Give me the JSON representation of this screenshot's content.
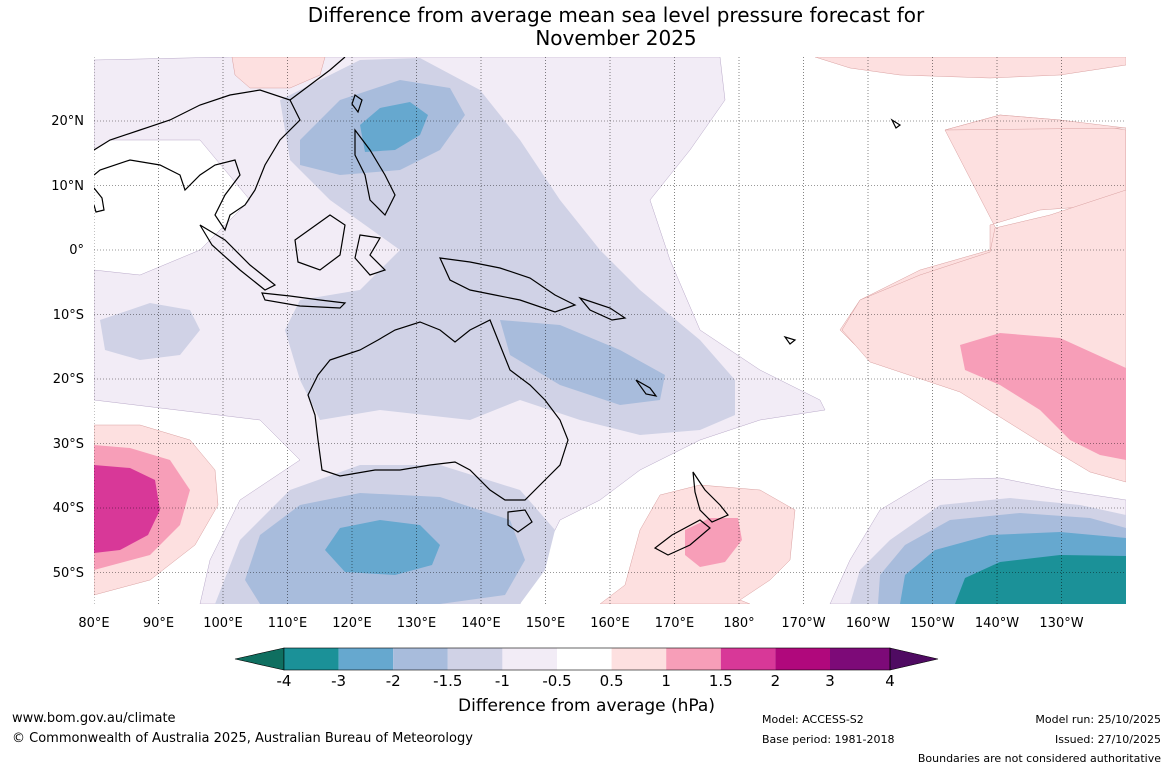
{
  "title_line1": "Difference from average mean sea level pressure forecast for",
  "title_line2": "November 2025",
  "lon_labels": [
    "80°E",
    "90°E",
    "100°E",
    "110°E",
    "120°E",
    "130°E",
    "140°E",
    "150°E",
    "160°E",
    "170°E",
    "180°",
    "170°W",
    "160°W",
    "150°W",
    "140°W",
    "130°W"
  ],
  "lat_labels": [
    "20°N",
    "10°N",
    "0°",
    "10°S",
    "20°S",
    "30°S",
    "40°S",
    "50°S"
  ],
  "colorbar": {
    "title": "Difference from average (hPa)",
    "tick_labels": [
      "-4",
      "-3",
      "-2",
      "-1.5",
      "-1",
      "-0.5",
      "0.5",
      "1",
      "1.5",
      "2",
      "3",
      "4"
    ],
    "colors": [
      "#0f6f60",
      "#1b9198",
      "#66a8cf",
      "#a8bcdc",
      "#d0d2e6",
      "#f2ecf6",
      "#ffffff",
      "#fde0e0",
      "#f79eb8",
      "#d83898",
      "#b0087c",
      "#7d0a78",
      "#4f0b62"
    ]
  },
  "footer": {
    "website": "www.bom.gov.au/climate",
    "copyright": "© Commonwealth of Australia 2025, Australian Bureau of Meteorology",
    "model": "Model: ACCESS-S2",
    "base_period": "Base period: 1981-2018",
    "model_run": "Model run: 25/10/2025",
    "issued": "Issued: 27/10/2025",
    "disclaimer": "Boundaries are not considered authoritative"
  }
}
